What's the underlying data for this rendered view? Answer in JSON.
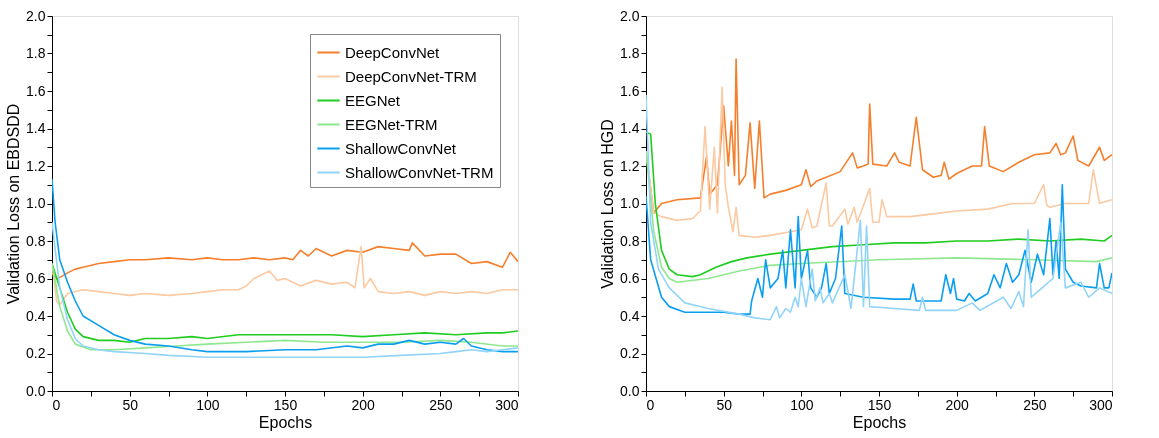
{
  "chart_data": [
    {
      "type": "line",
      "xlabel": "Epochs",
      "ylabel": "Validation Loss on EBDSDD",
      "xlim": [
        0,
        300
      ],
      "ylim": [
        0,
        2.0
      ],
      "xticks": [
        0,
        {
          "value": 25,
          "label": null
        },
        50,
        {
          "value": 75,
          "label": null
        },
        100,
        {
          "value": 125,
          "label": null
        },
        150,
        {
          "value": 175,
          "label": null
        },
        200,
        {
          "value": 225,
          "label": null
        },
        250,
        {
          "value": 275,
          "label": null
        },
        300
      ],
      "yticks": [
        {
          "value": 0,
          "label": "0.0"
        },
        {
          "value": 0.1,
          "label": null
        },
        0.2,
        {
          "value": 0.3,
          "label": null
        },
        0.4,
        {
          "value": 0.5,
          "label": null
        },
        0.6,
        {
          "value": 0.7,
          "label": null
        },
        0.8,
        {
          "value": 0.9,
          "label": null
        },
        {
          "value": 1.0,
          "label": "1.0"
        },
        {
          "value": 1.1,
          "label": null
        },
        1.2,
        {
          "value": 1.3,
          "label": null
        },
        1.4,
        {
          "value": 1.5,
          "label": null
        },
        1.6,
        {
          "value": 1.7,
          "label": null
        },
        1.8,
        {
          "value": 1.9,
          "label": null
        },
        {
          "value": 2.0,
          "label": "2.0"
        }
      ],
      "grid": false,
      "legend": "top right",
      "marker": "none",
      "line_style": "solid",
      "series": [
        {
          "name": "DeepConvNet",
          "color": "#f57f2c",
          "x": [
            0,
            3,
            6,
            10,
            15,
            20,
            30,
            40,
            50,
            60,
            75,
            90,
            100,
            110,
            120,
            130,
            140,
            150,
            155,
            160,
            165,
            170,
            180,
            190,
            200,
            210,
            220,
            230,
            232,
            240,
            250,
            260,
            270,
            280,
            290,
            295,
            300
          ],
          "values": [
            0.63,
            0.6,
            0.61,
            0.63,
            0.65,
            0.66,
            0.68,
            0.69,
            0.7,
            0.7,
            0.71,
            0.7,
            0.71,
            0.7,
            0.7,
            0.71,
            0.7,
            0.71,
            0.7,
            0.75,
            0.72,
            0.76,
            0.72,
            0.75,
            0.74,
            0.77,
            0.76,
            0.75,
            0.79,
            0.72,
            0.73,
            0.73,
            0.68,
            0.69,
            0.66,
            0.74,
            0.69
          ]
        },
        {
          "name": "DeepConvNet-TRM",
          "color": "#fbc9a2",
          "x": [
            0,
            3,
            5,
            10,
            20,
            30,
            40,
            50,
            60,
            75,
            90,
            100,
            110,
            120,
            125,
            130,
            135,
            140,
            145,
            150,
            160,
            170,
            180,
            190,
            195,
            199,
            201,
            205,
            210,
            220,
            230,
            240,
            250,
            260,
            270,
            280,
            290,
            300
          ],
          "values": [
            0.68,
            0.48,
            0.46,
            0.52,
            0.54,
            0.53,
            0.52,
            0.51,
            0.52,
            0.51,
            0.52,
            0.53,
            0.54,
            0.54,
            0.56,
            0.6,
            0.62,
            0.64,
            0.59,
            0.6,
            0.56,
            0.59,
            0.57,
            0.58,
            0.55,
            0.77,
            0.55,
            0.6,
            0.53,
            0.52,
            0.53,
            0.51,
            0.53,
            0.52,
            0.53,
            0.52,
            0.54,
            0.54
          ]
        },
        {
          "name": "EEGNet",
          "color": "#1fcc1f",
          "x": [
            0,
            5,
            10,
            15,
            20,
            30,
            40,
            50,
            60,
            75,
            90,
            100,
            120,
            140,
            160,
            180,
            200,
            220,
            240,
            260,
            280,
            290,
            300
          ],
          "values": [
            0.68,
            0.55,
            0.42,
            0.33,
            0.29,
            0.27,
            0.27,
            0.26,
            0.28,
            0.28,
            0.29,
            0.28,
            0.3,
            0.3,
            0.3,
            0.3,
            0.29,
            0.3,
            0.31,
            0.3,
            0.31,
            0.31,
            0.32
          ]
        },
        {
          "name": "EEGNet-TRM",
          "color": "#8fe88f",
          "x": [
            0,
            5,
            10,
            15,
            25,
            40,
            60,
            80,
            100,
            125,
            150,
            175,
            200,
            225,
            250,
            270,
            290,
            300
          ],
          "values": [
            0.68,
            0.45,
            0.32,
            0.25,
            0.22,
            0.22,
            0.23,
            0.24,
            0.25,
            0.26,
            0.27,
            0.26,
            0.26,
            0.26,
            0.27,
            0.26,
            0.24,
            0.24
          ]
        },
        {
          "name": "ShallowConvNet",
          "color": "#0b9ef0",
          "x": [
            0,
            2,
            5,
            10,
            15,
            20,
            30,
            40,
            50,
            60,
            75,
            90,
            100,
            125,
            150,
            170,
            190,
            200,
            210,
            220,
            230,
            240,
            250,
            260,
            265,
            270,
            280,
            290,
            300
          ],
          "values": [
            1.13,
            0.9,
            0.7,
            0.58,
            0.48,
            0.4,
            0.35,
            0.3,
            0.27,
            0.25,
            0.24,
            0.22,
            0.21,
            0.21,
            0.22,
            0.22,
            0.24,
            0.23,
            0.25,
            0.25,
            0.27,
            0.25,
            0.26,
            0.25,
            0.28,
            0.24,
            0.22,
            0.21,
            0.21
          ]
        },
        {
          "name": "ShallowConvNet-TRM",
          "color": "#92d4f8",
          "x": [
            0,
            5,
            10,
            15,
            20,
            30,
            40,
            60,
            75,
            100,
            125,
            150,
            175,
            200,
            225,
            250,
            260,
            270,
            280,
            290,
            300
          ],
          "values": [
            0.9,
            0.55,
            0.38,
            0.28,
            0.24,
            0.22,
            0.21,
            0.2,
            0.19,
            0.18,
            0.18,
            0.18,
            0.18,
            0.18,
            0.19,
            0.2,
            0.21,
            0.22,
            0.21,
            0.22,
            0.23
          ]
        }
      ]
    },
    {
      "type": "line",
      "xlabel": "Epochs",
      "ylabel": "Validation Loss on HGD",
      "xlim": [
        0,
        300
      ],
      "ylim": [
        0,
        2.0
      ],
      "xticks": [
        0,
        {
          "value": 25,
          "label": null
        },
        50,
        {
          "value": 75,
          "label": null
        },
        100,
        {
          "value": 125,
          "label": null
        },
        150,
        {
          "value": 175,
          "label": null
        },
        200,
        {
          "value": 225,
          "label": null
        },
        250,
        {
          "value": 275,
          "label": null
        },
        300
      ],
      "yticks": [
        {
          "value": 0,
          "label": "0.0"
        },
        {
          "value": 0.1,
          "label": null
        },
        0.2,
        {
          "value": 0.3,
          "label": null
        },
        0.4,
        {
          "value": 0.5,
          "label": null
        },
        0.6,
        {
          "value": 0.7,
          "label": null
        },
        0.8,
        {
          "value": 0.9,
          "label": null
        },
        {
          "value": 1.0,
          "label": "1.0"
        },
        {
          "value": 1.1,
          "label": null
        },
        1.2,
        {
          "value": 1.3,
          "label": null
        },
        1.4,
        {
          "value": 1.5,
          "label": null
        },
        1.6,
        {
          "value": 1.7,
          "label": null
        },
        1.8,
        {
          "value": 1.9,
          "label": null
        },
        {
          "value": 2.0,
          "label": "2.0"
        }
      ],
      "grid": false,
      "legend": false,
      "marker": "none",
      "line_style": "solid",
      "series": [
        {
          "color": "#f57f2c",
          "x": [
            0,
            5,
            10,
            20,
            35,
            39,
            41,
            46,
            50,
            53,
            55,
            57,
            58,
            60,
            64,
            67,
            70,
            73,
            76,
            80,
            90,
            100,
            103,
            106,
            110,
            125,
            133,
            136,
            140,
            143,
            144,
            146,
            155,
            160,
            163,
            170,
            174,
            178,
            185,
            190,
            192,
            195,
            200,
            210,
            216,
            218,
            221,
            230,
            240,
            250,
            260,
            264,
            267,
            270,
            275,
            278,
            285,
            292,
            295,
            300
          ],
          "values": [
            1.27,
            0.95,
            1.0,
            1.02,
            1.03,
            1.25,
            1.05,
            1.1,
            1.52,
            1.2,
            1.44,
            1.15,
            1.77,
            1.1,
            1.15,
            1.43,
            1.08,
            1.44,
            1.03,
            1.05,
            1.07,
            1.1,
            1.18,
            1.09,
            1.12,
            1.17,
            1.27,
            1.19,
            1.2,
            1.21,
            1.53,
            1.21,
            1.2,
            1.27,
            1.22,
            1.2,
            1.46,
            1.18,
            1.14,
            1.15,
            1.22,
            1.13,
            1.16,
            1.2,
            1.2,
            1.41,
            1.2,
            1.17,
            1.22,
            1.26,
            1.27,
            1.32,
            1.26,
            1.27,
            1.36,
            1.23,
            1.2,
            1.3,
            1.23,
            1.26
          ]
        },
        {
          "color": "#fbc9a2",
          "x": [
            0,
            5,
            10,
            20,
            30,
            35,
            38,
            41,
            44,
            46,
            49,
            51,
            53,
            56,
            58,
            60,
            70,
            80,
            100,
            104,
            107,
            110,
            116,
            118,
            120,
            128,
            130,
            134,
            136,
            144,
            146,
            150,
            152,
            155,
            170,
            190,
            200,
            220,
            236,
            250,
            256,
            258,
            260,
            270,
            276,
            285,
            288,
            292,
            300
          ],
          "values": [
            1.28,
            0.95,
            0.93,
            0.91,
            0.92,
            0.96,
            1.41,
            0.97,
            1.3,
            0.95,
            1.62,
            1.1,
            0.98,
            0.85,
            0.98,
            0.83,
            0.82,
            0.83,
            0.86,
            0.97,
            0.87,
            0.88,
            1.11,
            0.88,
            0.88,
            0.97,
            0.89,
            0.98,
            0.9,
            1.08,
            0.9,
            0.9,
            1.02,
            0.93,
            0.93,
            0.95,
            0.96,
            0.97,
            1.0,
            1.0,
            1.1,
            0.99,
            0.98,
            1.0,
            1.0,
            1.0,
            1.18,
            1.0,
            1.02
          ]
        },
        {
          "color": "#1fcc1f",
          "x": [
            0,
            3,
            6,
            10,
            15,
            20,
            30,
            35,
            45,
            55,
            65,
            80,
            100,
            120,
            140,
            160,
            180,
            200,
            220,
            240,
            260,
            280,
            295,
            300
          ],
          "values": [
            1.38,
            1.37,
            1.0,
            0.75,
            0.65,
            0.62,
            0.61,
            0.62,
            0.66,
            0.69,
            0.71,
            0.73,
            0.75,
            0.77,
            0.78,
            0.79,
            0.79,
            0.8,
            0.8,
            0.81,
            0.8,
            0.81,
            0.8,
            0.83
          ]
        },
        {
          "color": "#8fe88f",
          "x": [
            0,
            5,
            10,
            15,
            20,
            40,
            60,
            80,
            100,
            150,
            200,
            250,
            290,
            300
          ],
          "values": [
            1.28,
            0.85,
            0.66,
            0.6,
            0.58,
            0.6,
            0.64,
            0.67,
            0.68,
            0.7,
            0.71,
            0.7,
            0.69,
            0.71
          ]
        },
        {
          "color": "#0b9ef0",
          "x": [
            0,
            3,
            10,
            15,
            25,
            50,
            60,
            67,
            68,
            72,
            75,
            77,
            80,
            85,
            88,
            90,
            93,
            96,
            98,
            100,
            104,
            106,
            110,
            113,
            116,
            118,
            122,
            126,
            128,
            140,
            160,
            170,
            172,
            174,
            190,
            193,
            196,
            198,
            200,
            205,
            208,
            212,
            220,
            224,
            228,
            232,
            236,
            240,
            244,
            248,
            252,
            256,
            260,
            262,
            264,
            266,
            268,
            270,
            275,
            280,
            290,
            292,
            295,
            298,
            300
          ],
          "values": [
            1.04,
            0.7,
            0.5,
            0.45,
            0.42,
            0.42,
            0.41,
            0.41,
            0.48,
            0.6,
            0.5,
            0.7,
            0.55,
            0.6,
            0.75,
            0.55,
            0.86,
            0.55,
            0.93,
            0.6,
            0.75,
            0.55,
            0.5,
            0.55,
            0.68,
            0.52,
            0.6,
            0.88,
            0.52,
            0.5,
            0.49,
            0.49,
            0.57,
            0.48,
            0.48,
            0.62,
            0.52,
            0.6,
            0.49,
            0.48,
            0.52,
            0.48,
            0.52,
            0.62,
            0.55,
            0.68,
            0.58,
            0.62,
            0.75,
            0.58,
            0.73,
            0.62,
            0.92,
            0.62,
            0.8,
            0.6,
            1.1,
            0.65,
            0.58,
            0.56,
            0.55,
            0.68,
            0.55,
            0.55,
            0.63
          ]
        },
        {
          "color": "#92d4f8",
          "x": [
            0,
            3,
            8,
            15,
            25,
            40,
            60,
            70,
            80,
            84,
            86,
            90,
            93,
            96,
            98,
            100,
            103,
            107,
            109,
            112,
            114,
            118,
            120,
            128,
            132,
            138,
            140,
            142,
            144,
            160,
            176,
            178,
            180,
            200,
            210,
            215,
            230,
            235,
            240,
            243,
            246,
            248,
            255,
            262,
            267,
            270,
            280,
            285,
            292,
            300
          ],
          "values": [
            1.58,
            0.9,
            0.65,
            0.55,
            0.47,
            0.44,
            0.41,
            0.39,
            0.38,
            0.45,
            0.39,
            0.44,
            0.42,
            0.5,
            0.45,
            0.6,
            0.45,
            0.65,
            0.48,
            0.55,
            0.47,
            0.52,
            0.47,
            0.62,
            0.44,
            0.91,
            0.45,
            0.88,
            0.45,
            0.44,
            0.43,
            0.5,
            0.43,
            0.43,
            0.47,
            0.43,
            0.5,
            0.44,
            0.53,
            0.45,
            0.86,
            0.5,
            0.55,
            0.6,
            0.9,
            0.55,
            0.58,
            0.5,
            0.55,
            0.52
          ]
        }
      ]
    }
  ]
}
